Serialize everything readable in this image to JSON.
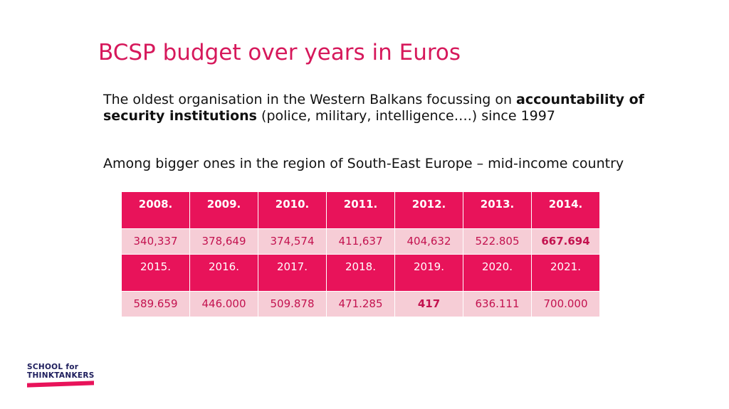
{
  "slide": {
    "title": "BCSP budget over years in Euros",
    "para1": {
      "text_a": "The oldest organisation in the Western Balkans focussing on ",
      "bold": "accountability of security institutions",
      "text_b": " (police, military, intelligence….) since 1997"
    },
    "para2": "Among bigger ones in the region of South-East Europe – mid-income country"
  },
  "table": {
    "years_row1": [
      "2008.",
      "2009.",
      "2010.",
      "2011.",
      "2012.",
      "2013.",
      "2014."
    ],
    "values_row1": [
      "340,337",
      "378,649",
      "374,574",
      "411,637",
      "404,632",
      "522.805",
      "667.694"
    ],
    "years_row2": [
      "2015.",
      "2016.",
      "2017.",
      "2018.",
      "2019.",
      "2020.",
      "2021."
    ],
    "values_row2": [
      "589.659",
      "446.000",
      "509.878",
      "471.285",
      "417",
      "636.111",
      "700.000"
    ]
  },
  "logo": {
    "line1": "SCHOOL for",
    "line2": "THINKTANKERS"
  },
  "colors": {
    "accent": "#e8135a",
    "title": "#d6185b",
    "value_bg": "#f6cdd6"
  }
}
